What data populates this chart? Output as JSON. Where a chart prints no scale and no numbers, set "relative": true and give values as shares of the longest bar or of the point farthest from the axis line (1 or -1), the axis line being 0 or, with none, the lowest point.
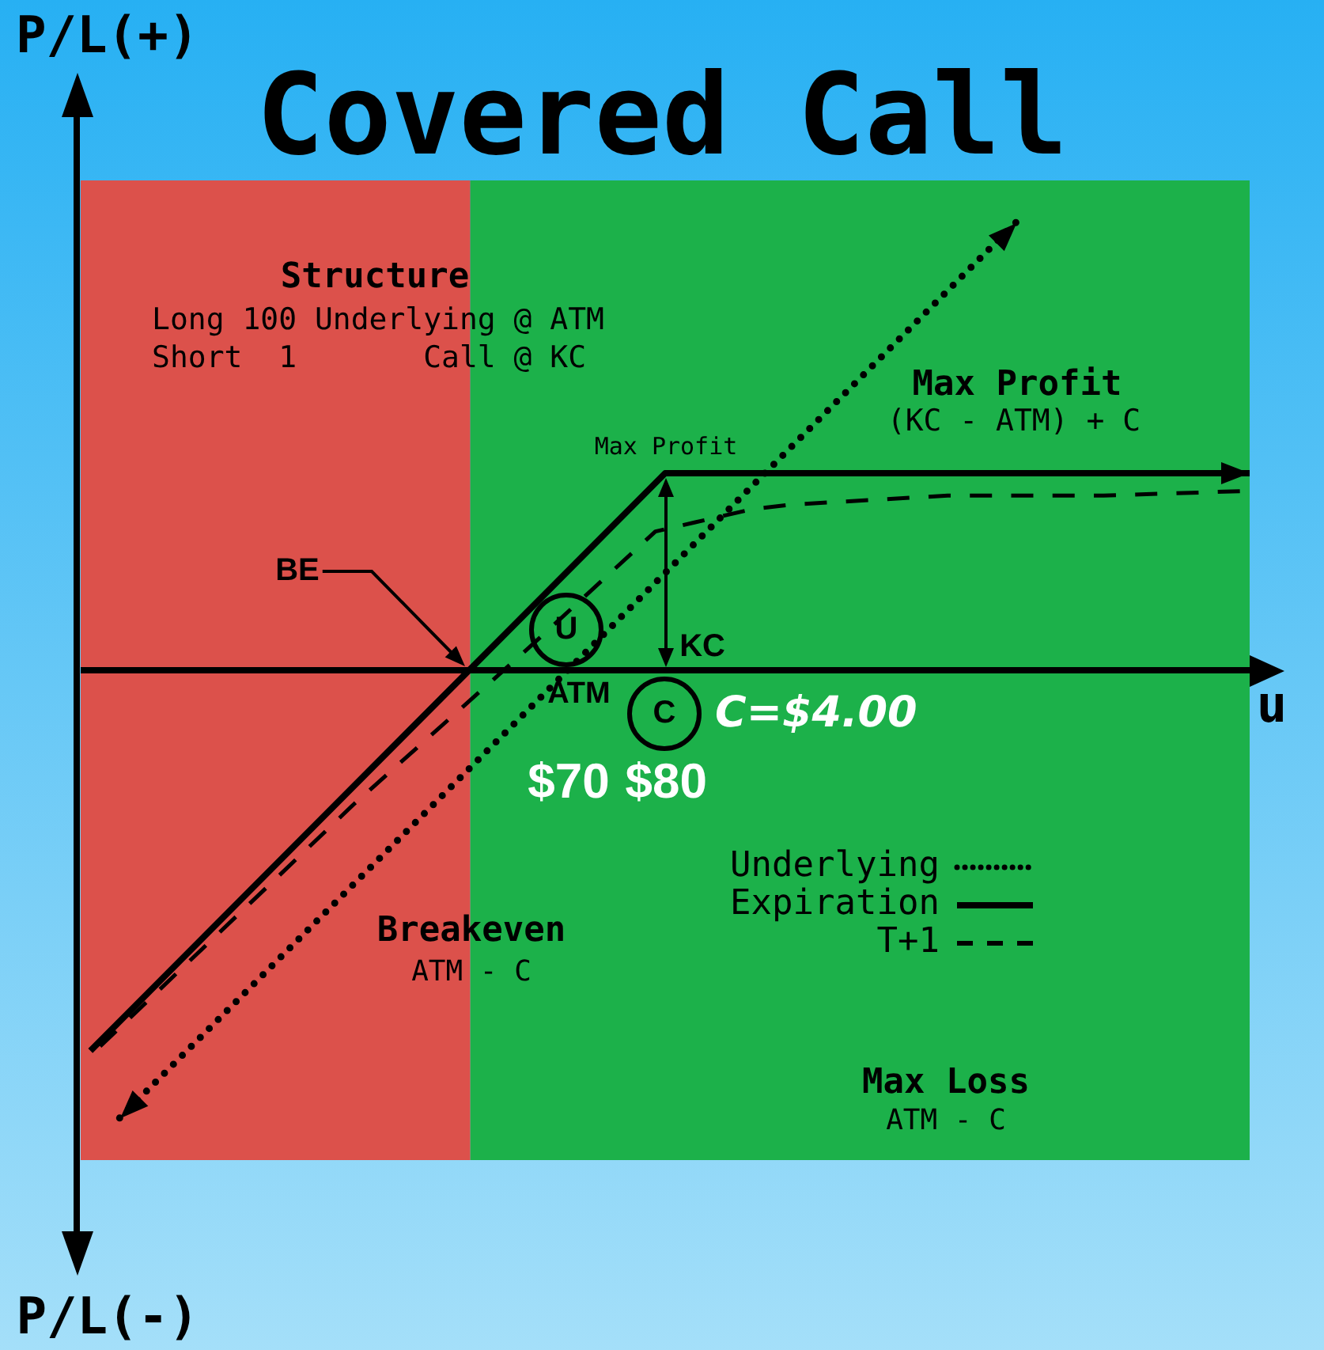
{
  "chart_data": {
    "type": "line",
    "title": "Covered Call",
    "xlabel": "u",
    "ylabel": "P/L(+)",
    "relative": true,
    "xlim": [
      20,
      140
    ],
    "xticks": [
      {
        "value": 70,
        "label": "$70"
      },
      {
        "value": 80,
        "label": "$80"
      }
    ],
    "marker": "none",
    "legend": "bottom right",
    "series": [
      {
        "name": "Underlying",
        "color": "#000000",
        "line_style": "dotted",
        "x": [
          24,
          116
        ],
        "values": [
          -1,
          1
        ]
      },
      {
        "name": "Expiration",
        "color": "#000000",
        "line_style": "solid",
        "x": [
          21,
          80,
          140
        ],
        "values": [
          -0.85,
          0.44,
          0.44
        ]
      },
      {
        "name": "T+1",
        "color": "#000000",
        "line_style": "dashed",
        "x": [
          22,
          48,
          66,
          79,
          83,
          89,
          93,
          109,
          125,
          139
        ],
        "values": [
          -0.84,
          -0.3,
          0.05,
          0.31,
          0.33,
          0.36,
          0.37,
          0.39,
          0.39,
          0.4
        ]
      }
    ],
    "bands": [
      {
        "axis": "x",
        "from": 20,
        "to": 60,
        "color": "#dc514b"
      },
      {
        "axis": "x",
        "from": 60,
        "to": 140,
        "color": "#1cb14a"
      }
    ],
    "annotations": [
      "Structure",
      "Long 100 Underlying @ ATM",
      "Short  1       Call @ KC",
      "Max Profit",
      "Max Profit",
      "(KC - ATM) + C",
      "BE",
      "U",
      "ATM",
      "KC",
      "C",
      "C=$4.00",
      "Breakeven",
      "ATM - C",
      "Max Loss",
      "ATM - C",
      "P/L(-)"
    ]
  }
}
